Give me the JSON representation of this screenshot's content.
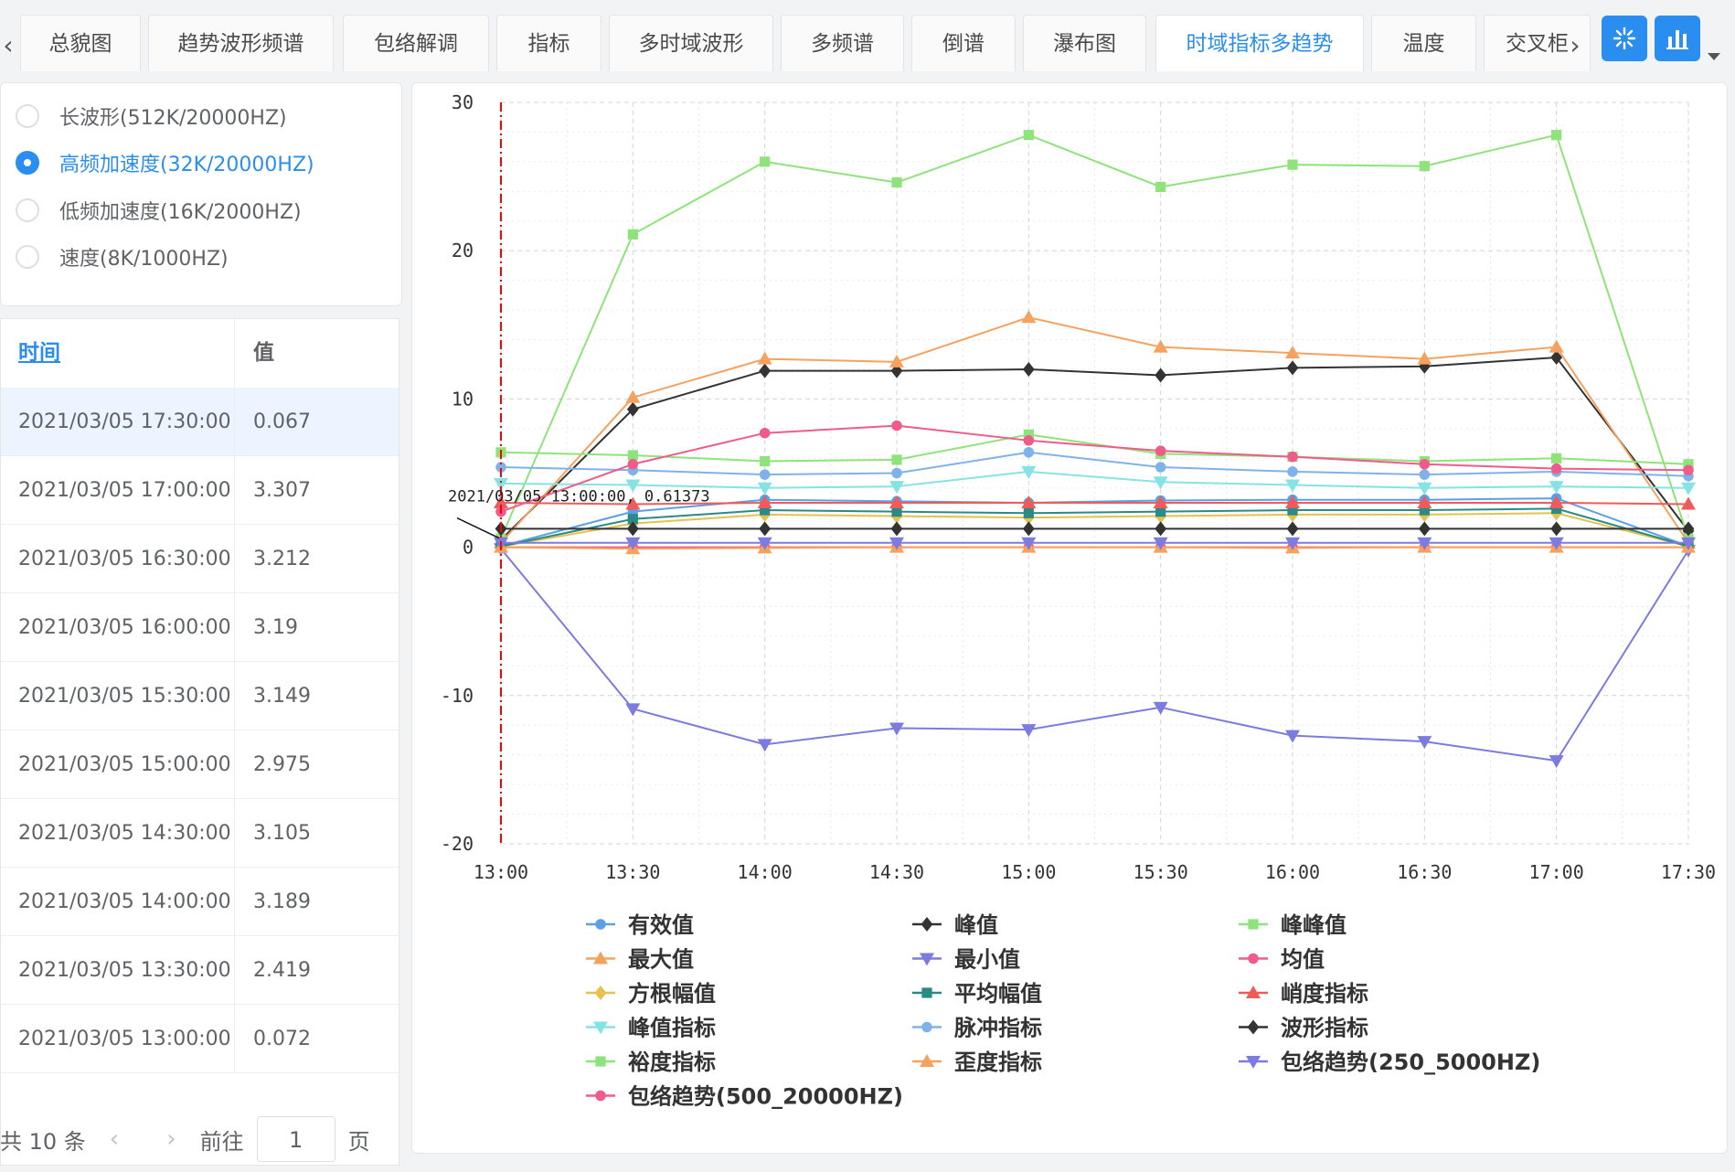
{
  "tabs": {
    "items": [
      {
        "label": "总貌图"
      },
      {
        "label": "趋势波形频谱"
      },
      {
        "label": "包络解调"
      },
      {
        "label": "指标"
      },
      {
        "label": "多时域波形"
      },
      {
        "label": "多频谱"
      },
      {
        "label": "倒谱"
      },
      {
        "label": "瀑布图"
      },
      {
        "label": "时域指标多趋势"
      },
      {
        "label": "温度"
      },
      {
        "label": "交叉柜"
      }
    ],
    "active_index": 8,
    "prev_icon": "chevron-left-icon",
    "next_icon": "chevron-right-icon"
  },
  "toolbar": {
    "buttons": [
      {
        "icon": "sparkle-icon"
      },
      {
        "icon": "bar-chart-icon"
      }
    ],
    "dropdown_icon": "caret-down-icon",
    "accent": "#2a8ef0"
  },
  "radio_group": {
    "options": [
      {
        "label": "长波形(512K/20000HZ)",
        "checked": false
      },
      {
        "label": "高频加速度(32K/20000HZ)",
        "checked": true
      },
      {
        "label": "低频加速度(16K/2000HZ)",
        "checked": false
      },
      {
        "label": "速度(8K/1000HZ)",
        "checked": false
      }
    ]
  },
  "table": {
    "headers": {
      "time": "时间",
      "value": "值"
    },
    "rows": [
      {
        "time": "2021/03/05 17:30:00",
        "value": "0.067",
        "selected": true
      },
      {
        "time": "2021/03/05 17:00:00",
        "value": "3.307",
        "selected": false
      },
      {
        "time": "2021/03/05 16:30:00",
        "value": "3.212",
        "selected": false
      },
      {
        "time": "2021/03/05 16:00:00",
        "value": "3.19",
        "selected": false
      },
      {
        "time": "2021/03/05 15:30:00",
        "value": "3.149",
        "selected": false
      },
      {
        "time": "2021/03/05 15:00:00",
        "value": "2.975",
        "selected": false
      },
      {
        "time": "2021/03/05 14:30:00",
        "value": "3.105",
        "selected": false
      },
      {
        "time": "2021/03/05 14:00:00",
        "value": "3.189",
        "selected": false
      },
      {
        "time": "2021/03/05 13:30:00",
        "value": "2.419",
        "selected": false
      },
      {
        "time": "2021/03/05 13:00:00",
        "value": "0.072",
        "selected": false
      }
    ]
  },
  "pagination": {
    "total": "共 10 条",
    "goto": "前往",
    "page": "1",
    "page_suffix": "页"
  },
  "chart_data": {
    "type": "line",
    "x": [
      "13:00",
      "13:30",
      "14:00",
      "14:30",
      "15:00",
      "15:30",
      "16:00",
      "16:30",
      "17:00",
      "17:30"
    ],
    "ylim": [
      -20,
      30
    ],
    "yticks": [
      30,
      20,
      10,
      0,
      -10,
      -20
    ],
    "grid": true,
    "legend_position": "bottom",
    "cursor": {
      "x": "13:00",
      "label": "2021/03/05 13:00:00, 0.61373",
      "color": "#ff0000"
    },
    "series": [
      {
        "name": "有效值",
        "color": "#5aa0e6",
        "marker": "circle",
        "values": [
          0.07,
          2.4,
          3.2,
          3.1,
          3.0,
          3.15,
          3.2,
          3.2,
          3.3,
          0.07
        ]
      },
      {
        "name": "峰值",
        "color": "#333333",
        "marker": "diamond",
        "values": [
          0.5,
          9.3,
          11.9,
          11.9,
          12.0,
          11.6,
          12.1,
          12.2,
          12.8,
          1.1
        ]
      },
      {
        "name": "峰峰值",
        "color": "#8ee37a",
        "marker": "square",
        "values": [
          0.6,
          21.1,
          26.0,
          24.6,
          27.8,
          24.3,
          25.8,
          25.7,
          27.8,
          0.6
        ]
      },
      {
        "name": "最大值",
        "color": "#f4a25e",
        "marker": "triangle-up",
        "values": [
          0.3,
          10.1,
          12.7,
          12.5,
          15.5,
          13.5,
          13.1,
          12.7,
          13.5,
          0.3
        ]
      },
      {
        "name": "最小值",
        "color": "#7b7be0",
        "marker": "triangle-down",
        "values": [
          -0.1,
          -10.9,
          -13.3,
          -12.2,
          -12.3,
          -10.8,
          -12.7,
          -13.1,
          -14.4,
          -0.2
        ]
      },
      {
        "name": "均值",
        "color": "#ef5b8a",
        "marker": "circle",
        "values": [
          0.0,
          0.0,
          0.0,
          0.0,
          0.0,
          0.0,
          0.0,
          0.0,
          0.0,
          0.0
        ]
      },
      {
        "name": "方根幅值",
        "color": "#e6c24a",
        "marker": "diamond",
        "values": [
          0.05,
          1.6,
          2.2,
          2.1,
          2.0,
          2.1,
          2.2,
          2.2,
          2.3,
          0.05
        ]
      },
      {
        "name": "平均幅值",
        "color": "#2a8a86",
        "marker": "square",
        "values": [
          0.06,
          1.9,
          2.5,
          2.4,
          2.3,
          2.4,
          2.5,
          2.5,
          2.6,
          0.06
        ]
      },
      {
        "name": "峭度指标",
        "color": "#f05a5a",
        "marker": "triangle-up",
        "values": [
          3.0,
          2.9,
          3.0,
          3.0,
          3.0,
          3.0,
          3.0,
          3.0,
          3.0,
          2.9
        ]
      },
      {
        "name": "峰值指标",
        "color": "#86e3e3",
        "marker": "triangle-down",
        "values": [
          4.3,
          4.2,
          4.0,
          4.1,
          5.1,
          4.4,
          4.2,
          4.0,
          4.1,
          4.0
        ]
      },
      {
        "name": "脉冲指标",
        "color": "#7fb2ea",
        "marker": "circle",
        "values": [
          5.4,
          5.2,
          4.9,
          5.0,
          6.4,
          5.4,
          5.1,
          4.9,
          5.1,
          4.8
        ]
      },
      {
        "name": "波形指标",
        "color": "#333333",
        "marker": "diamond",
        "values": [
          1.25,
          1.25,
          1.25,
          1.25,
          1.25,
          1.25,
          1.25,
          1.25,
          1.25,
          1.25
        ]
      },
      {
        "name": "裕度指标",
        "color": "#8ee37a",
        "marker": "square",
        "values": [
          6.4,
          6.2,
          5.8,
          5.9,
          7.6,
          6.3,
          6.1,
          5.8,
          6.0,
          5.6
        ]
      },
      {
        "name": "歪度指标",
        "color": "#f4a25e",
        "marker": "triangle-up",
        "values": [
          0.0,
          -0.1,
          -0.05,
          0.0,
          0.0,
          0.0,
          -0.05,
          0.0,
          0.0,
          0.0
        ]
      },
      {
        "name": "包络趋势(250_5000HZ)",
        "color": "#7b7be0",
        "marker": "triangle-down",
        "values": [
          0.3,
          0.3,
          0.3,
          0.3,
          0.3,
          0.3,
          0.3,
          0.3,
          0.3,
          0.3
        ]
      },
      {
        "name": "包络趋势(500_20000HZ)",
        "color": "#ef5b8a",
        "marker": "circle",
        "values": [
          2.4,
          5.6,
          7.7,
          8.2,
          7.2,
          6.5,
          6.1,
          5.6,
          5.3,
          5.2
        ]
      }
    ]
  }
}
